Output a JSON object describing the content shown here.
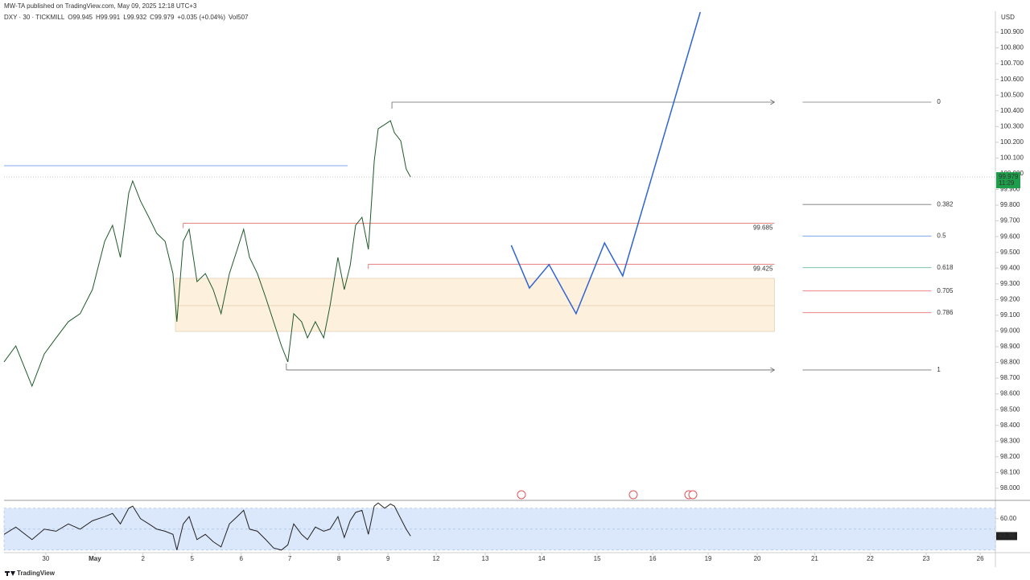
{
  "header": {
    "published": "MW-TA published on TradingView.com, May 09, 2025 12:18 UTC+3",
    "symbol": "DXY · 30 · TICKMILL",
    "ohlc": [
      {
        "key": "O",
        "value": 99.945
      },
      {
        "key": "H",
        "value": 99.991
      },
      {
        "key": "L",
        "value": 99.932
      },
      {
        "key": "C",
        "value": 99.979
      }
    ],
    "change": "+0.035 (+0.04%)",
    "vol_label": "Vol",
    "vol": 507,
    "currency": "USD",
    "countdown": "11:29",
    "brand": "TradingView"
  },
  "chart_data": [
    {
      "type": "line",
      "xlim": [
        -0.85,
        19.34
      ],
      "ylim": [
        97.93,
        101.05
      ],
      "xticks": [
        {
          "value": 0,
          "label": "30"
        },
        {
          "value": 1,
          "label": "May"
        },
        {
          "value": 1.98,
          "label": "2"
        },
        {
          "value": 2.98,
          "label": "5"
        },
        {
          "value": 3.98,
          "label": "6"
        },
        {
          "value": 4.97,
          "label": "7"
        },
        {
          "value": 5.97,
          "label": "8"
        },
        {
          "value": 6.97,
          "label": "9"
        },
        {
          "value": 7.95,
          "label": "12"
        },
        {
          "value": 8.95,
          "label": "13"
        },
        {
          "value": 10.1,
          "label": "14"
        },
        {
          "value": 11.23,
          "label": "15"
        },
        {
          "value": 12.36,
          "label": "16"
        },
        {
          "value": 13.49,
          "label": "19"
        },
        {
          "value": 14.49,
          "label": "20"
        },
        {
          "value": 15.66,
          "label": "21"
        },
        {
          "value": 16.79,
          "label": "22"
        },
        {
          "value": 17.93,
          "label": "23"
        },
        {
          "value": 19.03,
          "label": "26"
        }
      ],
      "yticks": [
        {
          "value": 98.0,
          "label": "98.000"
        },
        {
          "value": 98.1,
          "label": "98.100"
        },
        {
          "value": 98.2,
          "label": "98.200"
        },
        {
          "value": 98.3,
          "label": "98.300"
        },
        {
          "value": 98.4,
          "label": "98.400"
        },
        {
          "value": 98.5,
          "label": "98.500"
        },
        {
          "value": 98.6,
          "label": "98.600"
        },
        {
          "value": 98.7,
          "label": "98.700"
        },
        {
          "value": 98.8,
          "label": "98.800"
        },
        {
          "value": 98.9,
          "label": "98.900"
        },
        {
          "value": 99.0,
          "label": "99.000"
        },
        {
          "value": 99.1,
          "label": "99.100"
        },
        {
          "value": 99.2,
          "label": "99.200"
        },
        {
          "value": 99.3,
          "label": "99.300"
        },
        {
          "value": 99.4,
          "label": "99.400"
        },
        {
          "value": 99.5,
          "label": "99.500"
        },
        {
          "value": 99.6,
          "label": "99.600"
        },
        {
          "value": 99.7,
          "label": "99.700"
        },
        {
          "value": 99.8,
          "label": "99.800"
        },
        {
          "value": 99.9,
          "label": "99.900"
        },
        {
          "value": 100.0,
          "label": "100.000"
        },
        {
          "value": 100.1,
          "label": "100.100"
        },
        {
          "value": 100.2,
          "label": "100.200"
        },
        {
          "value": 100.3,
          "label": "100.300"
        },
        {
          "value": 100.4,
          "label": "100.400"
        },
        {
          "value": 100.5,
          "label": "100.500"
        },
        {
          "value": 100.6,
          "label": "100.600"
        },
        {
          "value": 100.7,
          "label": "100.700"
        },
        {
          "value": 100.8,
          "label": "100.800"
        },
        {
          "value": 100.9,
          "label": "100.900"
        }
      ],
      "series": [
        {
          "color": "#1e5a2a",
          "x": [
            -0.85,
            -0.61,
            -0.28,
            -0.03,
            0.21,
            0.46,
            0.7,
            0.95,
            1.2,
            1.36,
            1.52,
            1.69,
            1.77,
            1.93,
            2.1,
            2.26,
            2.43,
            2.59,
            2.67,
            2.8,
            2.92,
            3.08,
            3.25,
            3.41,
            3.57,
            3.74,
            3.9,
            4.03,
            4.15,
            4.31,
            4.48,
            4.64,
            4.8,
            4.93,
            5.05,
            5.21,
            5.33,
            5.49,
            5.66,
            5.79,
            5.95,
            6.08,
            6.2,
            6.31,
            6.44,
            6.57,
            6.69,
            6.77,
            6.9,
            7.02,
            7.1,
            7.23,
            7.34,
            7.43
          ],
          "values": [
            98.803,
            98.905,
            98.649,
            98.854,
            98.956,
            99.059,
            99.11,
            99.263,
            99.57,
            99.672,
            99.468,
            99.877,
            99.954,
            99.826,
            99.723,
            99.621,
            99.57,
            99.365,
            99.059,
            99.57,
            99.647,
            99.314,
            99.365,
            99.263,
            99.11,
            99.365,
            99.519,
            99.647,
            99.468,
            99.365,
            99.212,
            99.059,
            98.905,
            98.803,
            99.11,
            99.059,
            98.956,
            99.059,
            98.956,
            99.161,
            99.468,
            99.263,
            99.417,
            99.672,
            99.723,
            99.519,
            100.082,
            100.286,
            100.312,
            100.337,
            100.261,
            100.209,
            100.03,
            99.979
          ]
        },
        {
          "color": "#2f63d6",
          "x": [
            9.48,
            9.85,
            10.25,
            10.8,
            11.38,
            11.75,
            13.33
          ],
          "values": [
            99.545,
            99.273,
            99.422,
            99.11,
            99.56,
            99.35,
            101.028
          ]
        }
      ],
      "levels": [
        {
          "value": 99.685,
          "color": "#e05a5a",
          "from": 2.8
        },
        {
          "value": 99.425,
          "color": "#e05a5a",
          "from": 6.57
        }
      ],
      "blue_level": {
        "value": 100.051,
        "from": -0.85,
        "to": 6.15
      },
      "zone": {
        "top": 99.335,
        "mid": 99.161,
        "bottom": 98.997,
        "from": 2.64
      },
      "fib": {
        "high": 100.455,
        "low": 98.752,
        "high_from": 7.05,
        "low_from": 4.9,
        "to": 14.84,
        "levels": [
          {
            "value": 0,
            "color": "#777777"
          },
          {
            "value": 0.382,
            "color": "#777777"
          },
          {
            "value": 0.5,
            "color": "#5b8de6"
          },
          {
            "value": 0.618,
            "color": "#4caf8a"
          },
          {
            "value": 0.705,
            "color": "#e57373"
          },
          {
            "value": 0.786,
            "color": "#e57373"
          },
          {
            "value": 1,
            "color": "#777777"
          }
        ]
      }
    },
    {
      "type": "line",
      "ylim": [
        28.3,
        75.2
      ],
      "yticks": [
        {
          "value": 60,
          "label": "60.00"
        }
      ],
      "band": [
        30,
        70
      ],
      "series": [
        {
          "color": "#222222",
          "values": [
            45,
            52,
            40,
            50,
            48,
            55,
            50,
            58,
            62,
            65,
            55,
            70,
            72,
            60,
            55,
            50,
            48,
            45,
            30,
            55,
            62,
            40,
            45,
            38,
            33,
            55,
            62,
            68,
            50,
            48,
            40,
            32,
            30,
            35,
            55,
            45,
            40,
            52,
            48,
            50,
            62,
            42,
            58,
            66,
            68,
            45,
            72,
            75,
            70,
            74,
            72,
            60,
            50,
            43.36
          ]
        }
      ],
      "value_labels": [
        "43.36"
      ]
    }
  ]
}
